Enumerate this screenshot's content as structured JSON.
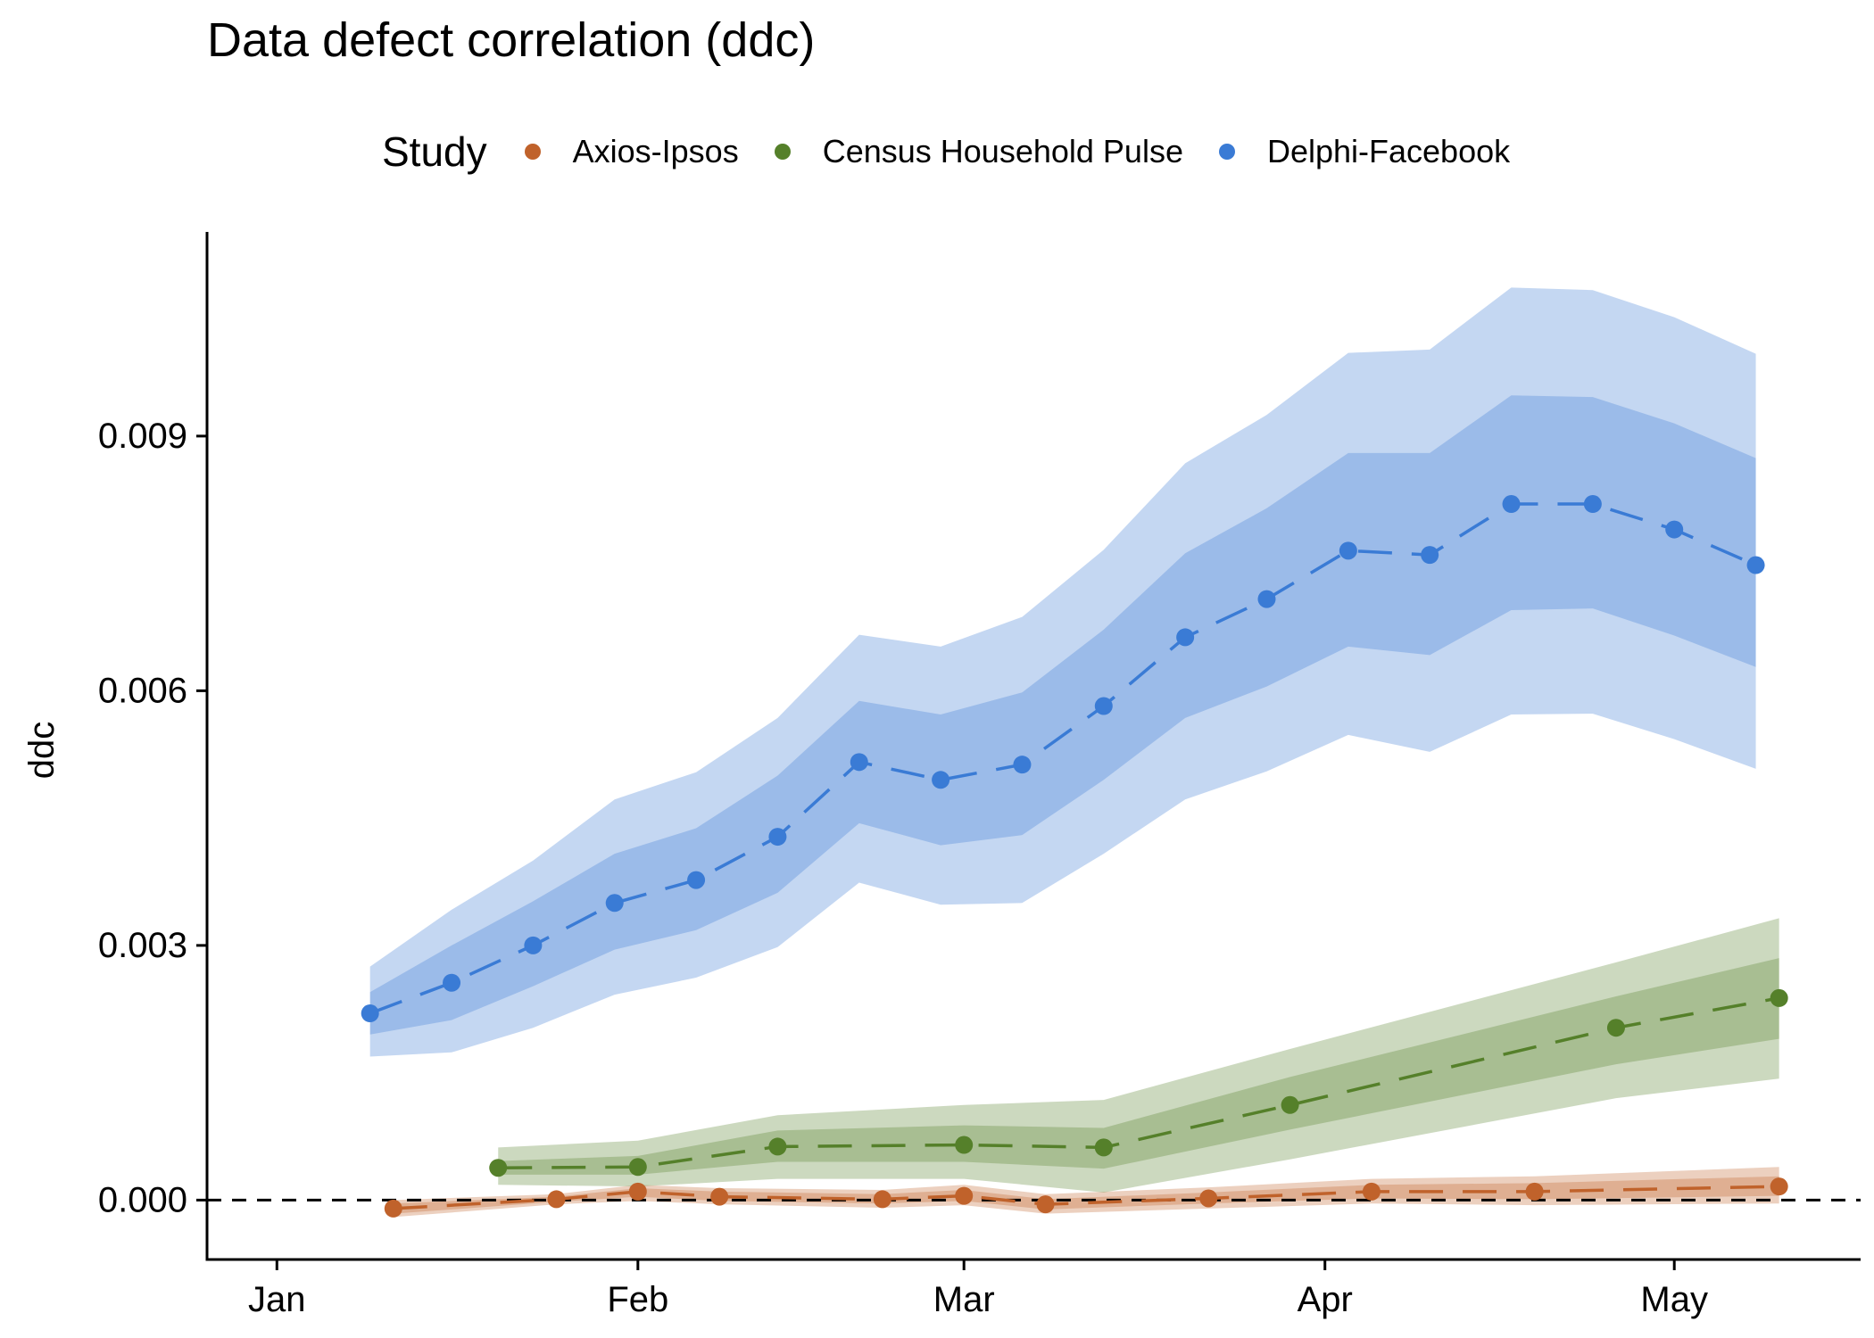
{
  "chart_data": {
    "type": "line",
    "title": "Data defect correlation (ddc)",
    "ylabel": "ddc",
    "xlabel": "",
    "legend": {
      "title": "Study",
      "placement": "top"
    },
    "x_ticks": [
      {
        "label": "Jan",
        "date": "2021-01-01"
      },
      {
        "label": "Feb",
        "date": "2021-02-01"
      },
      {
        "label": "Mar",
        "date": "2021-03-01"
      },
      {
        "label": "Apr",
        "date": "2021-04-01"
      },
      {
        "label": "May",
        "date": "2021-05-01"
      }
    ],
    "y_ticks": [
      "0.000",
      "0.003",
      "0.006",
      "0.009"
    ],
    "xlim": [
      "2020-12-26",
      "2021-05-17"
    ],
    "ylim": [
      -0.0007,
      0.0113
    ],
    "reference_line": {
      "y": 0,
      "style": "dashed"
    },
    "grid": false,
    "series": [
      {
        "name": "Axios-Ipsos",
        "color": "#c0622b",
        "points": [
          {
            "x": "2021-01-11",
            "y": -0.0001,
            "lo50": -0.00016,
            "hi50": -4e-05,
            "lo95": -0.0002,
            "hi95": 0.0
          },
          {
            "x": "2021-01-25",
            "y": 1e-05,
            "lo50": -2e-05,
            "hi50": 4e-05,
            "lo95": -5e-05,
            "hi95": 7e-05
          },
          {
            "x": "2021-02-01",
            "y": 0.0001,
            "lo50": 4e-05,
            "hi50": 0.00014,
            "lo95": -1e-05,
            "hi95": 0.00018
          },
          {
            "x": "2021-02-08",
            "y": 4e-05,
            "lo50": -1e-05,
            "hi50": 0.0001,
            "lo95": -5e-05,
            "hi95": 0.00014
          },
          {
            "x": "2021-02-22",
            "y": 1e-05,
            "lo50": -4e-05,
            "hi50": 7e-05,
            "lo95": -9e-05,
            "hi95": 0.00012
          },
          {
            "x": "2021-03-01",
            "y": 5e-05,
            "lo50": -1e-05,
            "hi50": 0.00012,
            "lo95": -6e-05,
            "hi95": 0.00018
          },
          {
            "x": "2021-03-08",
            "y": -5e-05,
            "lo50": -0.00011,
            "hi50": 1e-05,
            "lo95": -0.00016,
            "hi95": 7e-05
          },
          {
            "x": "2021-03-22",
            "y": 2e-05,
            "lo50": -4e-05,
            "hi50": 9e-05,
            "lo95": -0.0001,
            "hi95": 0.00015
          },
          {
            "x": "2021-04-05",
            "y": 0.0001,
            "lo50": 2e-05,
            "hi50": 0.00018,
            "lo95": -4e-05,
            "hi95": 0.00025
          },
          {
            "x": "2021-04-19",
            "y": 0.0001,
            "lo50": 1e-05,
            "hi50": 0.0002,
            "lo95": -6e-05,
            "hi95": 0.00028
          },
          {
            "x": "2021-05-10",
            "y": 0.00016,
            "lo50": 5e-05,
            "hi50": 0.00028,
            "lo95": -4e-05,
            "hi95": 0.00039
          }
        ]
      },
      {
        "name": "Census Household Pulse",
        "color": "#55802a",
        "points": [
          {
            "x": "2021-01-20",
            "y": 0.00038,
            "lo50": 0.0003,
            "hi50": 0.00046,
            "lo95": 0.00018,
            "hi95": 0.00062
          },
          {
            "x": "2021-02-01",
            "y": 0.00039,
            "lo50": 0.0003,
            "hi50": 0.00052,
            "lo95": 0.00016,
            "hi95": 0.0007
          },
          {
            "x": "2021-02-13",
            "y": 0.00063,
            "lo50": 0.00045,
            "hi50": 0.00082,
            "lo95": 0.00025,
            "hi95": 0.001
          },
          {
            "x": "2021-03-01",
            "y": 0.00065,
            "lo50": 0.00045,
            "hi50": 0.00088,
            "lo95": 0.00025,
            "hi95": 0.00112
          },
          {
            "x": "2021-03-13",
            "y": 0.00062,
            "lo50": 0.00037,
            "hi50": 0.00085,
            "lo95": 9e-05,
            "hi95": 0.00118
          },
          {
            "x": "2021-03-29",
            "y": 0.00112,
            "lo50": 0.00083,
            "hi50": 0.00145,
            "lo95": 0.00048,
            "hi95": 0.00178
          },
          {
            "x": "2021-04-26",
            "y": 0.00203,
            "lo50": 0.0016,
            "hi50": 0.0024,
            "lo95": 0.0012,
            "hi95": 0.0028
          },
          {
            "x": "2021-05-10",
            "y": 0.00238,
            "lo50": 0.0019,
            "hi50": 0.00285,
            "lo95": 0.00143,
            "hi95": 0.00332
          }
        ]
      },
      {
        "name": "Delphi-Facebook",
        "color": "#3a7bd5",
        "points": [
          {
            "x": "2021-01-09",
            "y": 0.0022,
            "lo50": 0.00195,
            "hi50": 0.00245,
            "lo95": 0.00169,
            "hi95": 0.00275
          },
          {
            "x": "2021-01-16",
            "y": 0.00256,
            "lo50": 0.00212,
            "hi50": 0.003,
            "lo95": 0.00174,
            "hi95": 0.00342
          },
          {
            "x": "2021-01-23",
            "y": 0.003,
            "lo50": 0.00252,
            "hi50": 0.00352,
            "lo95": 0.00203,
            "hi95": 0.004
          },
          {
            "x": "2021-01-30",
            "y": 0.0035,
            "lo50": 0.00295,
            "hi50": 0.00408,
            "lo95": 0.00242,
            "hi95": 0.00472
          },
          {
            "x": "2021-02-06",
            "y": 0.00377,
            "lo50": 0.00318,
            "hi50": 0.00438,
            "lo95": 0.00262,
            "hi95": 0.00504
          },
          {
            "x": "2021-02-13",
            "y": 0.00428,
            "lo50": 0.00362,
            "hi50": 0.005,
            "lo95": 0.00298,
            "hi95": 0.00568
          },
          {
            "x": "2021-02-20",
            "y": 0.00516,
            "lo50": 0.00444,
            "hi50": 0.00588,
            "lo95": 0.00374,
            "hi95": 0.00666
          },
          {
            "x": "2021-02-27",
            "y": 0.00495,
            "lo50": 0.00418,
            "hi50": 0.00572,
            "lo95": 0.00348,
            "hi95": 0.00652
          },
          {
            "x": "2021-03-06",
            "y": 0.00513,
            "lo50": 0.0043,
            "hi50": 0.00598,
            "lo95": 0.0035,
            "hi95": 0.00687
          },
          {
            "x": "2021-03-13",
            "y": 0.00582,
            "lo50": 0.00495,
            "hi50": 0.00672,
            "lo95": 0.00408,
            "hi95": 0.00766
          },
          {
            "x": "2021-03-20",
            "y": 0.00663,
            "lo50": 0.00568,
            "hi50": 0.00762,
            "lo95": 0.00472,
            "hi95": 0.00868
          },
          {
            "x": "2021-03-27",
            "y": 0.00708,
            "lo50": 0.00605,
            "hi50": 0.00815,
            "lo95": 0.00505,
            "hi95": 0.00925
          },
          {
            "x": "2021-04-03",
            "y": 0.00765,
            "lo50": 0.00652,
            "hi50": 0.0088,
            "lo95": 0.00548,
            "hi95": 0.00998
          },
          {
            "x": "2021-04-10",
            "y": 0.0076,
            "lo50": 0.00642,
            "hi50": 0.0088,
            "lo95": 0.00528,
            "hi95": 0.01002
          },
          {
            "x": "2021-04-17",
            "y": 0.0082,
            "lo50": 0.00695,
            "hi50": 0.00948,
            "lo95": 0.00572,
            "hi95": 0.01075
          },
          {
            "x": "2021-04-24",
            "y": 0.0082,
            "lo50": 0.00697,
            "hi50": 0.00946,
            "lo95": 0.00573,
            "hi95": 0.01072
          },
          {
            "x": "2021-05-01",
            "y": 0.0079,
            "lo50": 0.00665,
            "hi50": 0.00915,
            "lo95": 0.00543,
            "hi95": 0.0104
          },
          {
            "x": "2021-05-08",
            "y": 0.00748,
            "lo50": 0.00628,
            "hi50": 0.00874,
            "lo95": 0.00508,
            "hi95": 0.00997
          }
        ]
      }
    ]
  }
}
